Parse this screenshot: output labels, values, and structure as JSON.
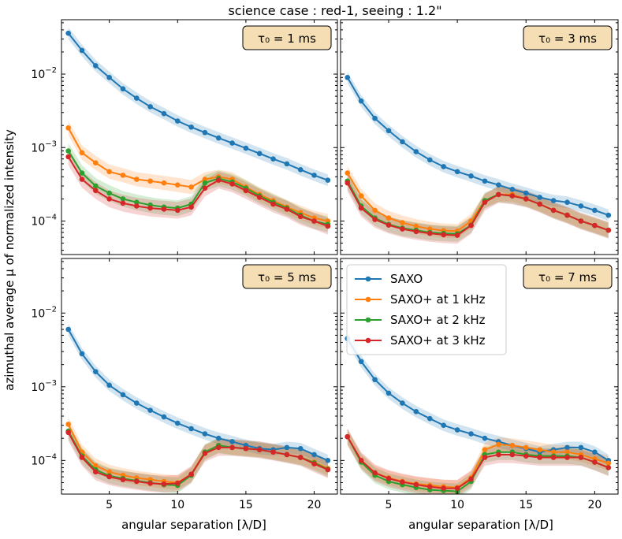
{
  "figure": {
    "title": "science case : red-1, seeing : 1.2\"",
    "ylabel": "azimuthal average μ of normalized intensity",
    "xlabel": "angular separation [λ/D]"
  },
  "chart_data": [
    {
      "type": "line",
      "panel": "top-left",
      "tau_label": "τ₀ = 1 ms",
      "yscale": "log",
      "xlim": [
        1.5,
        21.7
      ],
      "ylim": [
        3.5e-05,
        0.055
      ],
      "x": [
        2,
        3,
        4,
        5,
        6,
        7,
        8,
        9,
        10,
        11,
        12,
        13,
        14,
        15,
        16,
        17,
        18,
        19,
        20,
        21
      ],
      "series": [
        {
          "name": "SAXO",
          "color": "#1f77b4",
          "values": [
            0.036,
            0.021,
            0.013,
            0.009,
            0.0063,
            0.0047,
            0.0036,
            0.0029,
            0.0023,
            0.0019,
            0.0016,
            0.00135,
            0.00115,
            0.00098,
            0.00083,
            0.0007,
            0.0006,
            0.0005,
            0.00042,
            0.00036
          ]
        },
        {
          "name": "SAXO+ at 1 kHz",
          "color": "#ff7f0e",
          "values": [
            0.00185,
            0.00085,
            0.00062,
            0.00047,
            0.00042,
            0.00037,
            0.00035,
            0.00033,
            0.00031,
            0.00029,
            0.00037,
            0.0004,
            0.00037,
            0.00029,
            0.00023,
            0.00019,
            0.000155,
            0.00013,
            0.00011,
            0.0001
          ]
        },
        {
          "name": "SAXO+ at 2 kHz",
          "color": "#2ca02c",
          "values": [
            0.0009,
            0.00045,
            0.0003,
            0.00024,
            0.0002,
            0.00018,
            0.000165,
            0.000155,
            0.00015,
            0.00017,
            0.00033,
            0.00038,
            0.00034,
            0.00028,
            0.00022,
            0.00018,
            0.00015,
            0.00012,
            0.0001,
            9e-05
          ]
        },
        {
          "name": "SAXO+ at 3 kHz",
          "color": "#d62728",
          "values": [
            0.00075,
            0.00037,
            0.00026,
            0.0002,
            0.000175,
            0.00016,
            0.00015,
            0.000145,
            0.00014,
            0.000155,
            0.00028,
            0.00036,
            0.00032,
            0.00026,
            0.00021,
            0.00017,
            0.000145,
            0.000115,
            0.0001,
            8.5e-05
          ]
        }
      ]
    },
    {
      "type": "line",
      "panel": "top-right",
      "tau_label": "τ₀ = 3 ms",
      "yscale": "log",
      "xlim": [
        1.5,
        21.7
      ],
      "ylim": [
        3.5e-05,
        0.055
      ],
      "x": [
        2,
        3,
        4,
        5,
        6,
        7,
        8,
        9,
        10,
        11,
        12,
        13,
        14,
        15,
        16,
        17,
        18,
        19,
        20,
        21
      ],
      "series": [
        {
          "name": "SAXO",
          "color": "#1f77b4",
          "values": [
            0.009,
            0.0043,
            0.0025,
            0.0017,
            0.0012,
            0.00088,
            0.00068,
            0.00055,
            0.00047,
            0.00041,
            0.00035,
            0.00031,
            0.00027,
            0.00024,
            0.00021,
            0.00019,
            0.00018,
            0.00016,
            0.00014,
            0.00012
          ]
        },
        {
          "name": "SAXO+ at 1 kHz",
          "color": "#ff7f0e",
          "values": [
            0.00045,
            0.00022,
            0.00014,
            0.00011,
            9.5e-05,
            8.5e-05,
            7.8e-05,
            7.4e-05,
            7.3e-05,
            0.0001,
            0.00019,
            0.00023,
            0.00023,
            0.0002,
            0.00017,
            0.00014,
            0.00012,
            0.0001,
            8.7e-05,
            7.5e-05
          ]
        },
        {
          "name": "SAXO+ at 2 kHz",
          "color": "#2ca02c",
          "values": [
            0.00035,
            0.00016,
            0.00011,
            9e-05,
            8e-05,
            7.5e-05,
            7e-05,
            6.8e-05,
            6.7e-05,
            8.8e-05,
            0.00019,
            0.00023,
            0.00022,
            0.0002,
            0.00017,
            0.00014,
            0.00012,
            0.0001,
            8.7e-05,
            7.5e-05
          ]
        },
        {
          "name": "SAXO+ at 3 kHz",
          "color": "#d62728",
          "values": [
            0.00033,
            0.00015,
            0.000105,
            8.8e-05,
            7.8e-05,
            7.2e-05,
            6.8e-05,
            6.5e-05,
            6.4e-05,
            8.7e-05,
            0.00018,
            0.00023,
            0.00022,
            0.0002,
            0.00017,
            0.00014,
            0.00012,
            0.0001,
            8.7e-05,
            7.5e-05
          ]
        }
      ]
    },
    {
      "type": "line",
      "panel": "bottom-left",
      "tau_label": "τ₀ = 5 ms",
      "yscale": "log",
      "xlim": [
        1.5,
        21.7
      ],
      "ylim": [
        3.5e-05,
        0.055
      ],
      "x": [
        2,
        3,
        4,
        5,
        6,
        7,
        8,
        9,
        10,
        11,
        12,
        13,
        14,
        15,
        16,
        17,
        18,
        19,
        20,
        21
      ],
      "series": [
        {
          "name": "SAXO",
          "color": "#1f77b4",
          "values": [
            0.006,
            0.0028,
            0.0016,
            0.00105,
            0.00078,
            0.0006,
            0.00048,
            0.00039,
            0.00032,
            0.00027,
            0.00023,
            0.0002,
            0.00018,
            0.00016,
            0.000145,
            0.00014,
            0.00015,
            0.000145,
            0.00012,
            0.0001
          ]
        },
        {
          "name": "SAXO+ at 1 kHz",
          "color": "#ff7f0e",
          "values": [
            0.00031,
            0.00013,
            8.5e-05,
            7e-05,
            6.3e-05,
            5.8e-05,
            5.5e-05,
            5.2e-05,
            5e-05,
            6.5e-05,
            0.00013,
            0.00016,
            0.00015,
            0.000145,
            0.00014,
            0.00013,
            0.00012,
            0.00011,
            9.5e-05,
            7.8e-05
          ]
        },
        {
          "name": "SAXO+ at 2 kHz",
          "color": "#2ca02c",
          "values": [
            0.00025,
            0.000115,
            7.5e-05,
            6.2e-05,
            5.7e-05,
            5.3e-05,
            5e-05,
            4.7e-05,
            4.6e-05,
            6.3e-05,
            0.00013,
            0.00016,
            0.00015,
            0.000145,
            0.00014,
            0.00013,
            0.00012,
            0.00011,
            9.3e-05,
            7.6e-05
          ]
        },
        {
          "name": "SAXO+ at 3 kHz",
          "color": "#d62728",
          "values": [
            0.00024,
            0.00011,
            7e-05,
            6e-05,
            5.5e-05,
            5.2e-05,
            4.9e-05,
            4.8e-05,
            4.9e-05,
            6.5e-05,
            0.000125,
            0.00015,
            0.00015,
            0.000145,
            0.00014,
            0.00013,
            0.00012,
            0.00011,
            9e-05,
            7.5e-05
          ]
        }
      ]
    },
    {
      "type": "line",
      "panel": "bottom-right",
      "tau_label": "τ₀ = 7 ms",
      "yscale": "log",
      "xlim": [
        1.5,
        21.7
      ],
      "ylim": [
        3.5e-05,
        0.055
      ],
      "legend": "top-left",
      "x": [
        2,
        3,
        4,
        5,
        6,
        7,
        8,
        9,
        10,
        11,
        12,
        13,
        14,
        15,
        16,
        17,
        18,
        19,
        20,
        21
      ],
      "series": [
        {
          "name": "SAXO",
          "color": "#1f77b4",
          "values": [
            0.0045,
            0.0022,
            0.00125,
            0.00082,
            0.0006,
            0.00046,
            0.00037,
            0.0003,
            0.00026,
            0.00023,
            0.0002,
            0.00018,
            0.00016,
            0.000145,
            0.00013,
            0.00014,
            0.00015,
            0.00015,
            0.00013,
            0.0001
          ]
        },
        {
          "name": "SAXO+ at 1 kHz",
          "color": "#ff7f0e",
          "values": [
            0.00021,
            0.0001,
            6.8e-05,
            5.8e-05,
            5.2e-05,
            4.8e-05,
            4.6e-05,
            4.4e-05,
            4.3e-05,
            5.8e-05,
            0.00014,
            0.000165,
            0.00016,
            0.00015,
            0.00014,
            0.00013,
            0.00013,
            0.00012,
            0.000105,
            9.2e-05
          ]
        },
        {
          "name": "SAXO+ at 2 kHz",
          "color": "#2ca02c",
          "values": [
            0.00021,
            9.5e-05,
            6.3e-05,
            5.2e-05,
            4.7e-05,
            4.3e-05,
            4e-05,
            3.9e-05,
            3.8e-05,
            5.2e-05,
            0.00012,
            0.00013,
            0.00013,
            0.00012,
            0.000115,
            0.000115,
            0.000115,
            0.00011,
            9.5e-05,
            8e-05
          ]
        },
        {
          "name": "SAXO+ at 3 kHz",
          "color": "#d62728",
          "values": [
            0.00021,
            0.0001,
            6.8e-05,
            5.7e-05,
            5.1e-05,
            4.7e-05,
            4.4e-05,
            4.2e-05,
            4.2e-05,
            5.6e-05,
            0.00011,
            0.00012,
            0.00012,
            0.000115,
            0.00011,
            0.00011,
            0.00011,
            0.00011,
            9.5e-05,
            8e-05
          ]
        }
      ]
    }
  ]
}
